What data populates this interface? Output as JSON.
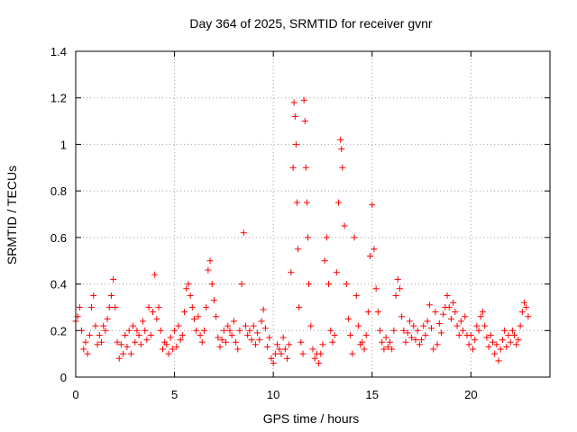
{
  "chart_data": {
    "type": "scatter",
    "title": "Day 364 of 2025, SRMTID for receiver gvnr",
    "xlabel": "GPS time / hours",
    "ylabel": "SRMTID / TECUs",
    "xlim": [
      0,
      24
    ],
    "ylim": [
      0,
      1.4
    ],
    "xticks": [
      0,
      5,
      10,
      15,
      20
    ],
    "yticks": [
      0,
      0.2,
      0.4,
      0.6,
      0.8,
      1,
      1.2,
      1.4
    ],
    "xtick_labels": [
      "0",
      "5",
      "10",
      "15",
      "20"
    ],
    "ytick_labels": [
      "0",
      "0.2",
      "0.4",
      "0.6",
      "0.8",
      "1",
      "1.2",
      "1.4"
    ],
    "grid": true,
    "marker": "+",
    "series_color": "#ff0000",
    "series": [
      {
        "name": "SRMTID",
        "points": [
          [
            0.0,
            0.24
          ],
          [
            0.1,
            0.26
          ],
          [
            0.2,
            0.3
          ],
          [
            0.3,
            0.2
          ],
          [
            0.4,
            0.12
          ],
          [
            0.5,
            0.15
          ],
          [
            0.6,
            0.1
          ],
          [
            0.7,
            0.18
          ],
          [
            0.8,
            0.3
          ],
          [
            0.9,
            0.35
          ],
          [
            1.0,
            0.22
          ],
          [
            1.1,
            0.14
          ],
          [
            1.2,
            0.18
          ],
          [
            1.3,
            0.15
          ],
          [
            1.4,
            0.22
          ],
          [
            1.5,
            0.2
          ],
          [
            1.6,
            0.25
          ],
          [
            1.7,
            0.3
          ],
          [
            1.8,
            0.35
          ],
          [
            1.9,
            0.42
          ],
          [
            2.0,
            0.3
          ],
          [
            2.1,
            0.15
          ],
          [
            2.2,
            0.08
          ],
          [
            2.3,
            0.14
          ],
          [
            2.4,
            0.1
          ],
          [
            2.5,
            0.18
          ],
          [
            2.6,
            0.13
          ],
          [
            2.7,
            0.2
          ],
          [
            2.8,
            0.1
          ],
          [
            2.9,
            0.22
          ],
          [
            3.0,
            0.15
          ],
          [
            3.1,
            0.2
          ],
          [
            3.2,
            0.18
          ],
          [
            3.3,
            0.14
          ],
          [
            3.4,
            0.24
          ],
          [
            3.5,
            0.2
          ],
          [
            3.6,
            0.16
          ],
          [
            3.7,
            0.3
          ],
          [
            3.8,
            0.18
          ],
          [
            3.9,
            0.28
          ],
          [
            4.0,
            0.44
          ],
          [
            4.1,
            0.25
          ],
          [
            4.2,
            0.3
          ],
          [
            4.3,
            0.2
          ],
          [
            4.4,
            0.12
          ],
          [
            4.5,
            0.15
          ],
          [
            4.6,
            0.14
          ],
          [
            4.7,
            0.1
          ],
          [
            4.8,
            0.17
          ],
          [
            4.9,
            0.12
          ],
          [
            5.0,
            0.2
          ],
          [
            5.1,
            0.13
          ],
          [
            5.2,
            0.22
          ],
          [
            5.3,
            0.16
          ],
          [
            5.4,
            0.18
          ],
          [
            5.5,
            0.28
          ],
          [
            5.6,
            0.38
          ],
          [
            5.7,
            0.4
          ],
          [
            5.8,
            0.35
          ],
          [
            5.9,
            0.3
          ],
          [
            6.0,
            0.25
          ],
          [
            6.1,
            0.2
          ],
          [
            6.2,
            0.26
          ],
          [
            6.3,
            0.18
          ],
          [
            6.4,
            0.15
          ],
          [
            6.5,
            0.2
          ],
          [
            6.6,
            0.3
          ],
          [
            6.7,
            0.46
          ],
          [
            6.8,
            0.5
          ],
          [
            6.9,
            0.4
          ],
          [
            7.0,
            0.33
          ],
          [
            7.1,
            0.26
          ],
          [
            7.2,
            0.17
          ],
          [
            7.3,
            0.13
          ],
          [
            7.4,
            0.16
          ],
          [
            7.5,
            0.2
          ],
          [
            7.6,
            0.15
          ],
          [
            7.7,
            0.22
          ],
          [
            7.8,
            0.2
          ],
          [
            7.9,
            0.18
          ],
          [
            8.0,
            0.24
          ],
          [
            8.1,
            0.15
          ],
          [
            8.2,
            0.12
          ],
          [
            8.3,
            0.2
          ],
          [
            8.4,
            0.4
          ],
          [
            8.5,
            0.62
          ],
          [
            8.6,
            0.22
          ],
          [
            8.7,
            0.18
          ],
          [
            8.8,
            0.2
          ],
          [
            8.9,
            0.16
          ],
          [
            9.0,
            0.22
          ],
          [
            9.1,
            0.14
          ],
          [
            9.2,
            0.19
          ],
          [
            9.3,
            0.16
          ],
          [
            9.4,
            0.24
          ],
          [
            9.5,
            0.29
          ],
          [
            9.6,
            0.21
          ],
          [
            9.7,
            0.13
          ],
          [
            9.8,
            0.17
          ],
          [
            9.9,
            0.08
          ],
          [
            10.0,
            0.06
          ],
          [
            10.1,
            0.1
          ],
          [
            10.2,
            0.14
          ],
          [
            10.3,
            0.12
          ],
          [
            10.4,
            0.1
          ],
          [
            10.5,
            0.17
          ],
          [
            10.6,
            0.12
          ],
          [
            10.7,
            0.08
          ],
          [
            10.8,
            0.14
          ],
          [
            10.9,
            0.45
          ],
          [
            11.0,
            0.9
          ],
          [
            11.05,
            1.18
          ],
          [
            11.1,
            1.12
          ],
          [
            11.15,
            1.0
          ],
          [
            11.2,
            0.75
          ],
          [
            11.25,
            0.55
          ],
          [
            11.3,
            0.3
          ],
          [
            11.4,
            0.15
          ],
          [
            11.5,
            0.1
          ],
          [
            11.55,
            1.19
          ],
          [
            11.6,
            1.1
          ],
          [
            11.65,
            0.9
          ],
          [
            11.7,
            0.75
          ],
          [
            11.75,
            0.6
          ],
          [
            11.8,
            0.4
          ],
          [
            11.9,
            0.22
          ],
          [
            12.0,
            0.12
          ],
          [
            12.1,
            0.08
          ],
          [
            12.2,
            0.1
          ],
          [
            12.3,
            0.06
          ],
          [
            12.4,
            0.1
          ],
          [
            12.5,
            0.14
          ],
          [
            12.6,
            0.5
          ],
          [
            12.7,
            0.6
          ],
          [
            12.8,
            0.4
          ],
          [
            12.9,
            0.2
          ],
          [
            13.0,
            0.15
          ],
          [
            13.1,
            0.18
          ],
          [
            13.2,
            0.45
          ],
          [
            13.3,
            0.75
          ],
          [
            13.4,
            1.02
          ],
          [
            13.45,
            0.98
          ],
          [
            13.5,
            0.9
          ],
          [
            13.6,
            0.65
          ],
          [
            13.7,
            0.4
          ],
          [
            13.8,
            0.25
          ],
          [
            13.9,
            0.18
          ],
          [
            14.0,
            0.1
          ],
          [
            14.1,
            0.6
          ],
          [
            14.2,
            0.35
          ],
          [
            14.3,
            0.22
          ],
          [
            14.4,
            0.14
          ],
          [
            14.5,
            0.15
          ],
          [
            14.6,
            0.12
          ],
          [
            14.7,
            0.18
          ],
          [
            14.8,
            0.28
          ],
          [
            14.9,
            0.52
          ],
          [
            15.0,
            0.74
          ],
          [
            15.1,
            0.55
          ],
          [
            15.2,
            0.38
          ],
          [
            15.3,
            0.28
          ],
          [
            15.4,
            0.2
          ],
          [
            15.5,
            0.15
          ],
          [
            15.6,
            0.12
          ],
          [
            15.7,
            0.17
          ],
          [
            15.8,
            0.13
          ],
          [
            15.9,
            0.15
          ],
          [
            16.0,
            0.12
          ],
          [
            16.1,
            0.2
          ],
          [
            16.2,
            0.35
          ],
          [
            16.3,
            0.42
          ],
          [
            16.4,
            0.38
          ],
          [
            16.5,
            0.26
          ],
          [
            16.6,
            0.2
          ],
          [
            16.7,
            0.15
          ],
          [
            16.8,
            0.19
          ],
          [
            16.9,
            0.24
          ],
          [
            17.0,
            0.17
          ],
          [
            17.1,
            0.22
          ],
          [
            17.2,
            0.16
          ],
          [
            17.3,
            0.2
          ],
          [
            17.4,
            0.14
          ],
          [
            17.5,
            0.16
          ],
          [
            17.6,
            0.22
          ],
          [
            17.7,
            0.18
          ],
          [
            17.8,
            0.24
          ],
          [
            17.9,
            0.31
          ],
          [
            18.0,
            0.21
          ],
          [
            18.1,
            0.12
          ],
          [
            18.2,
            0.28
          ],
          [
            18.3,
            0.14
          ],
          [
            18.4,
            0.23
          ],
          [
            18.5,
            0.19
          ],
          [
            18.6,
            0.27
          ],
          [
            18.7,
            0.3
          ],
          [
            18.8,
            0.35
          ],
          [
            18.9,
            0.3
          ],
          [
            19.0,
            0.25
          ],
          [
            19.1,
            0.32
          ],
          [
            19.2,
            0.28
          ],
          [
            19.3,
            0.22
          ],
          [
            19.4,
            0.18
          ],
          [
            19.5,
            0.24
          ],
          [
            19.6,
            0.2
          ],
          [
            19.7,
            0.26
          ],
          [
            19.8,
            0.18
          ],
          [
            19.9,
            0.14
          ],
          [
            20.0,
            0.18
          ],
          [
            20.1,
            0.12
          ],
          [
            20.2,
            0.16
          ],
          [
            20.3,
            0.22
          ],
          [
            20.4,
            0.2
          ],
          [
            20.5,
            0.26
          ],
          [
            20.6,
            0.28
          ],
          [
            20.7,
            0.22
          ],
          [
            20.8,
            0.17
          ],
          [
            20.9,
            0.13
          ],
          [
            21.0,
            0.18
          ],
          [
            21.1,
            0.15
          ],
          [
            21.2,
            0.1
          ],
          [
            21.3,
            0.14
          ],
          [
            21.4,
            0.07
          ],
          [
            21.5,
            0.12
          ],
          [
            21.6,
            0.16
          ],
          [
            21.7,
            0.2
          ],
          [
            21.8,
            0.13
          ],
          [
            21.9,
            0.18
          ],
          [
            22.0,
            0.15
          ],
          [
            22.1,
            0.2
          ],
          [
            22.2,
            0.18
          ],
          [
            22.3,
            0.14
          ],
          [
            22.4,
            0.16
          ],
          [
            22.5,
            0.22
          ],
          [
            22.6,
            0.28
          ],
          [
            22.7,
            0.32
          ],
          [
            22.8,
            0.3
          ],
          [
            22.9,
            0.26
          ]
        ]
      }
    ]
  }
}
